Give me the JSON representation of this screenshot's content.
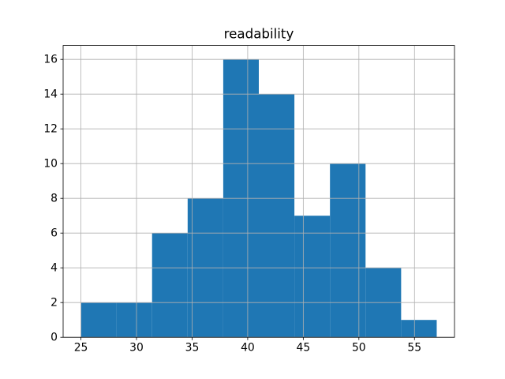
{
  "figure": {
    "background": "#ffffff"
  },
  "chart_data": {
    "type": "bar",
    "subtype": "histogram",
    "title": "readability",
    "xlabel": "",
    "ylabel": "",
    "bin_edges": [
      25.0,
      28.2,
      31.4,
      34.6,
      37.8,
      41.0,
      44.2,
      47.4,
      50.6,
      53.8,
      57.0
    ],
    "counts": [
      2,
      2,
      6,
      8,
      16,
      14,
      7,
      10,
      4,
      1
    ],
    "xticks": [
      25,
      30,
      35,
      40,
      45,
      50,
      55
    ],
    "yticks": [
      0,
      2,
      4,
      6,
      8,
      10,
      12,
      14,
      16
    ],
    "xlim": [
      23.4,
      58.6
    ],
    "ylim": [
      0,
      16.8
    ],
    "grid": true,
    "legend": false,
    "bar_color": "#1f77b4",
    "grid_color": "#b0b0b0",
    "spine_color": "#000000",
    "tick_color": "#000000",
    "text_color": "#000000"
  }
}
